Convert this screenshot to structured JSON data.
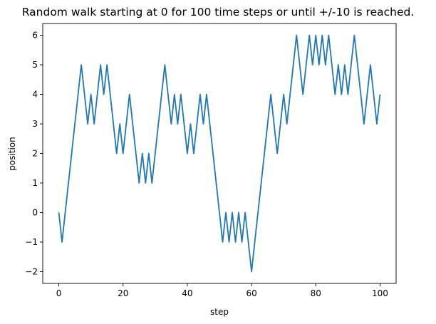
{
  "chart_data": {
    "type": "line",
    "title": "Random walk starting at 0 for 100 time steps or until +/-10 is reached.",
    "xlabel": "step",
    "ylabel": "position",
    "xlim": [
      -5,
      105
    ],
    "ylim": [
      -2.4,
      6.4
    ],
    "xticks": [
      0,
      20,
      40,
      60,
      80,
      100
    ],
    "xtick_labels": [
      "0",
      "20",
      "40",
      "60",
      "80",
      "100"
    ],
    "yticks": [
      -2,
      -1,
      0,
      1,
      2,
      3,
      4,
      5,
      6
    ],
    "ytick_labels": [
      "−2",
      "−1",
      "0",
      "1",
      "2",
      "3",
      "4",
      "5",
      "6"
    ],
    "grid": false,
    "legend": "none",
    "series": [
      {
        "color": "#1f77b4",
        "x": [
          0,
          1,
          2,
          3,
          4,
          5,
          6,
          7,
          8,
          9,
          10,
          11,
          12,
          13,
          14,
          15,
          16,
          17,
          18,
          19,
          20,
          21,
          22,
          23,
          24,
          25,
          26,
          27,
          28,
          29,
          30,
          31,
          32,
          33,
          34,
          35,
          36,
          37,
          38,
          39,
          40,
          41,
          42,
          43,
          44,
          45,
          46,
          47,
          48,
          49,
          50,
          51,
          52,
          53,
          54,
          55,
          56,
          57,
          58,
          59,
          60,
          61,
          62,
          63,
          64,
          65,
          66,
          67,
          68,
          69,
          70,
          71,
          72,
          73,
          74,
          75,
          76,
          77,
          78,
          79,
          80,
          81,
          82,
          83,
          84,
          85,
          86,
          87,
          88,
          89,
          90,
          91,
          92,
          93,
          94,
          95,
          96,
          97,
          98,
          99,
          100
        ],
        "values": [
          0,
          -1,
          0,
          1,
          2,
          3,
          4,
          5,
          4,
          3,
          4,
          3,
          4,
          5,
          4,
          5,
          4,
          3,
          2,
          3,
          2,
          3,
          4,
          3,
          2,
          1,
          2,
          1,
          2,
          1,
          2,
          3,
          4,
          5,
          4,
          3,
          4,
          3,
          4,
          3,
          2,
          3,
          2,
          3,
          4,
          3,
          4,
          3,
          2,
          1,
          0,
          -1,
          0,
          -1,
          0,
          -1,
          0,
          -1,
          0,
          -1,
          -2,
          -1,
          0,
          1,
          2,
          3,
          4,
          3,
          2,
          3,
          4,
          3,
          4,
          5,
          6,
          5,
          4,
          5,
          6,
          5,
          6,
          5,
          6,
          5,
          6,
          5,
          4,
          5,
          4,
          5,
          4,
          5,
          6,
          5,
          4,
          3,
          4,
          5,
          4,
          3,
          4
        ]
      }
    ]
  }
}
